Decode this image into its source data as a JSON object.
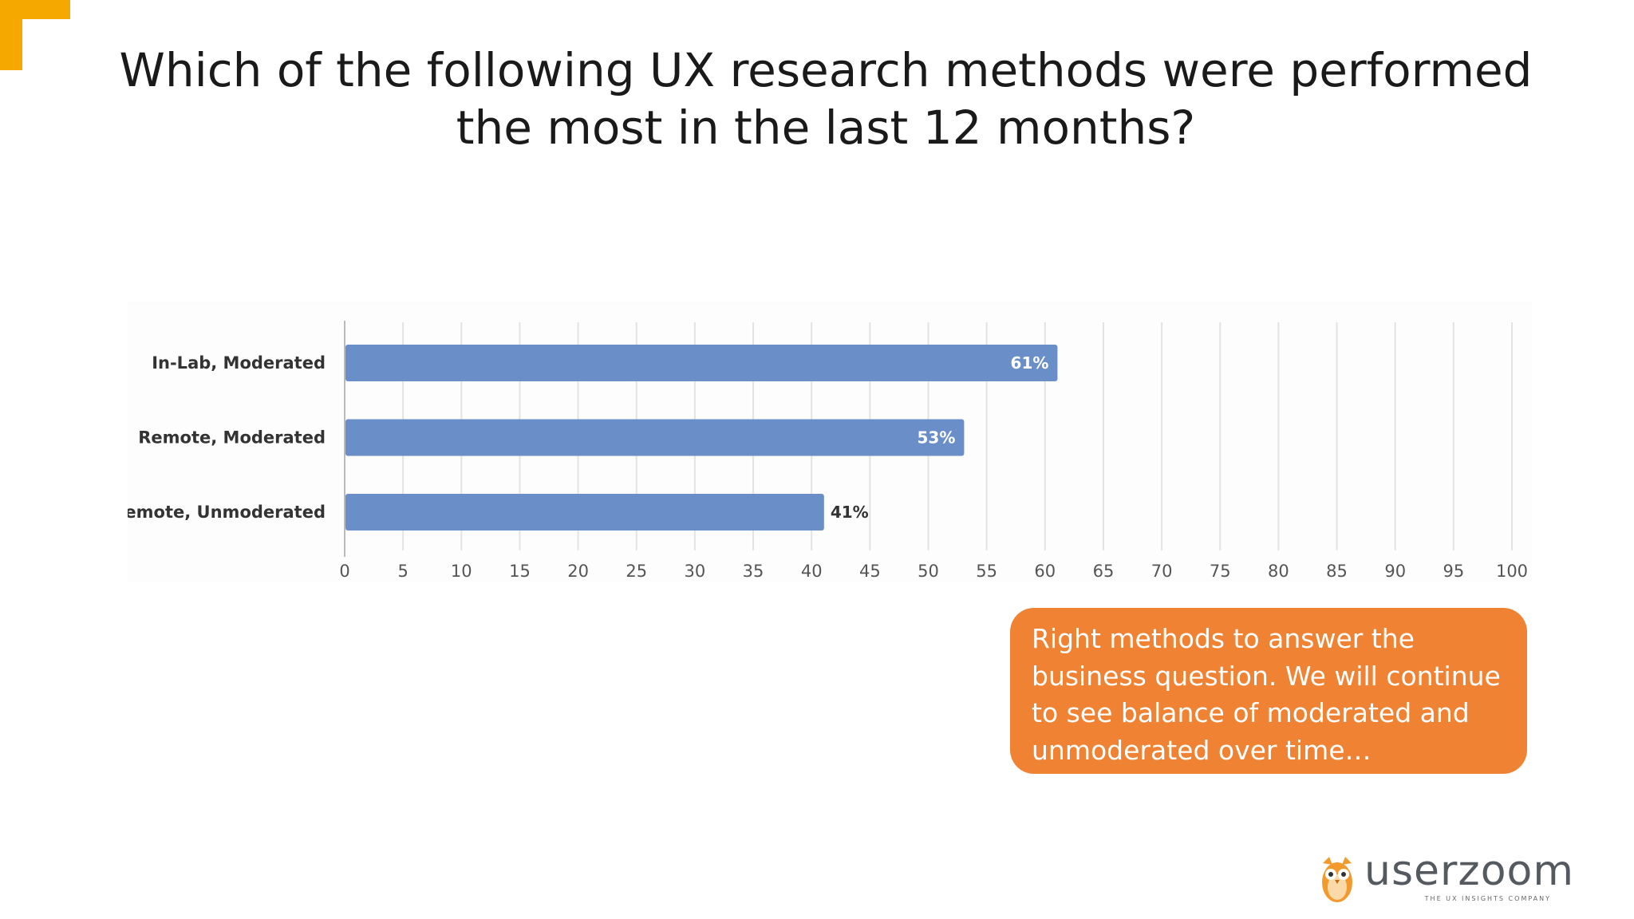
{
  "slide": {
    "title": "Which of the following UX research methods were performed the most in the last 12 months?",
    "callout": "Right methods to answer the business question. We will continue to see balance of moderated and unmoderated over time…",
    "logo": {
      "word": "userzoom",
      "tagline": "THE UX INSIGHTS COMPANY",
      "icon": "owl-icon"
    },
    "colors": {
      "accent_corner": "#f5a800",
      "callout": "#ef8233",
      "bar": "#6a8fc8",
      "logo_orange": "#f29a2e"
    }
  },
  "chart_data": {
    "type": "bar",
    "orientation": "horizontal",
    "categories": [
      "In-Lab, Moderated",
      "Remote, Moderated",
      "Remote, Unmoderated"
    ],
    "values": [
      61,
      53,
      41
    ],
    "value_labels": [
      "61%",
      "53%",
      "41%"
    ],
    "xlim": [
      0,
      100
    ],
    "xticks": [
      "0",
      "5",
      "10",
      "15",
      "20",
      "25",
      "30",
      "35",
      "40",
      "45",
      "50",
      "55",
      "60",
      "65",
      "70",
      "75",
      "80",
      "85",
      "90",
      "95",
      "100"
    ],
    "grid": true
  }
}
